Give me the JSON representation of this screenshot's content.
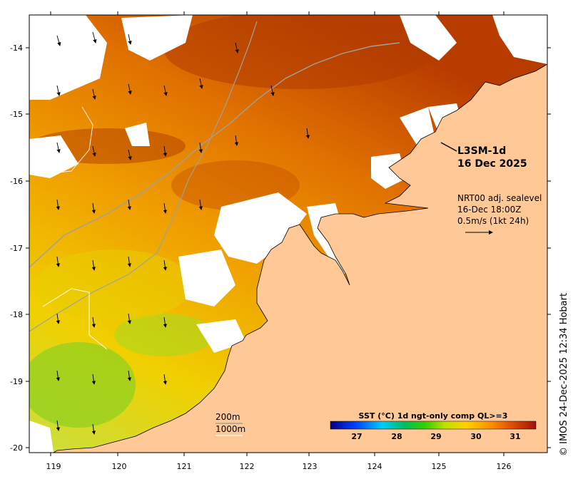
{
  "product": {
    "name": "L3SM-1d",
    "date": "16 Dec 2025"
  },
  "wind_annotation": {
    "source": "NRT00 adj. sealevel",
    "time": "16-Dec 18:00Z",
    "scale": "0.5m/s (1kt 24h)"
  },
  "isobaths": [
    "200m",
    "1000m"
  ],
  "colorbar": {
    "title": "SST (°C) 1d ngt-only comp QL>=3",
    "ticks": [
      "27",
      "28",
      "29",
      "30",
      "31"
    ],
    "colors": [
      "#00007f",
      "#0040ff",
      "#00c8ff",
      "#00c060",
      "#30d000",
      "#c0e000",
      "#ffd000",
      "#ff9000",
      "#e05000",
      "#a01010"
    ]
  },
  "axes": {
    "lon_ticks": [
      "119",
      "120",
      "121",
      "122",
      "123",
      "124",
      "125",
      "126"
    ],
    "lat_ticks": [
      "-14",
      "-15",
      "-16",
      "-17",
      "-18",
      "-19",
      "-20"
    ]
  },
  "colors": {
    "land": "#ffc896",
    "no_data": "#ffffff",
    "isobath": "#a0a0a0"
  },
  "credit": "© IMOS 24-Dec-2025 12:34 Hobart"
}
